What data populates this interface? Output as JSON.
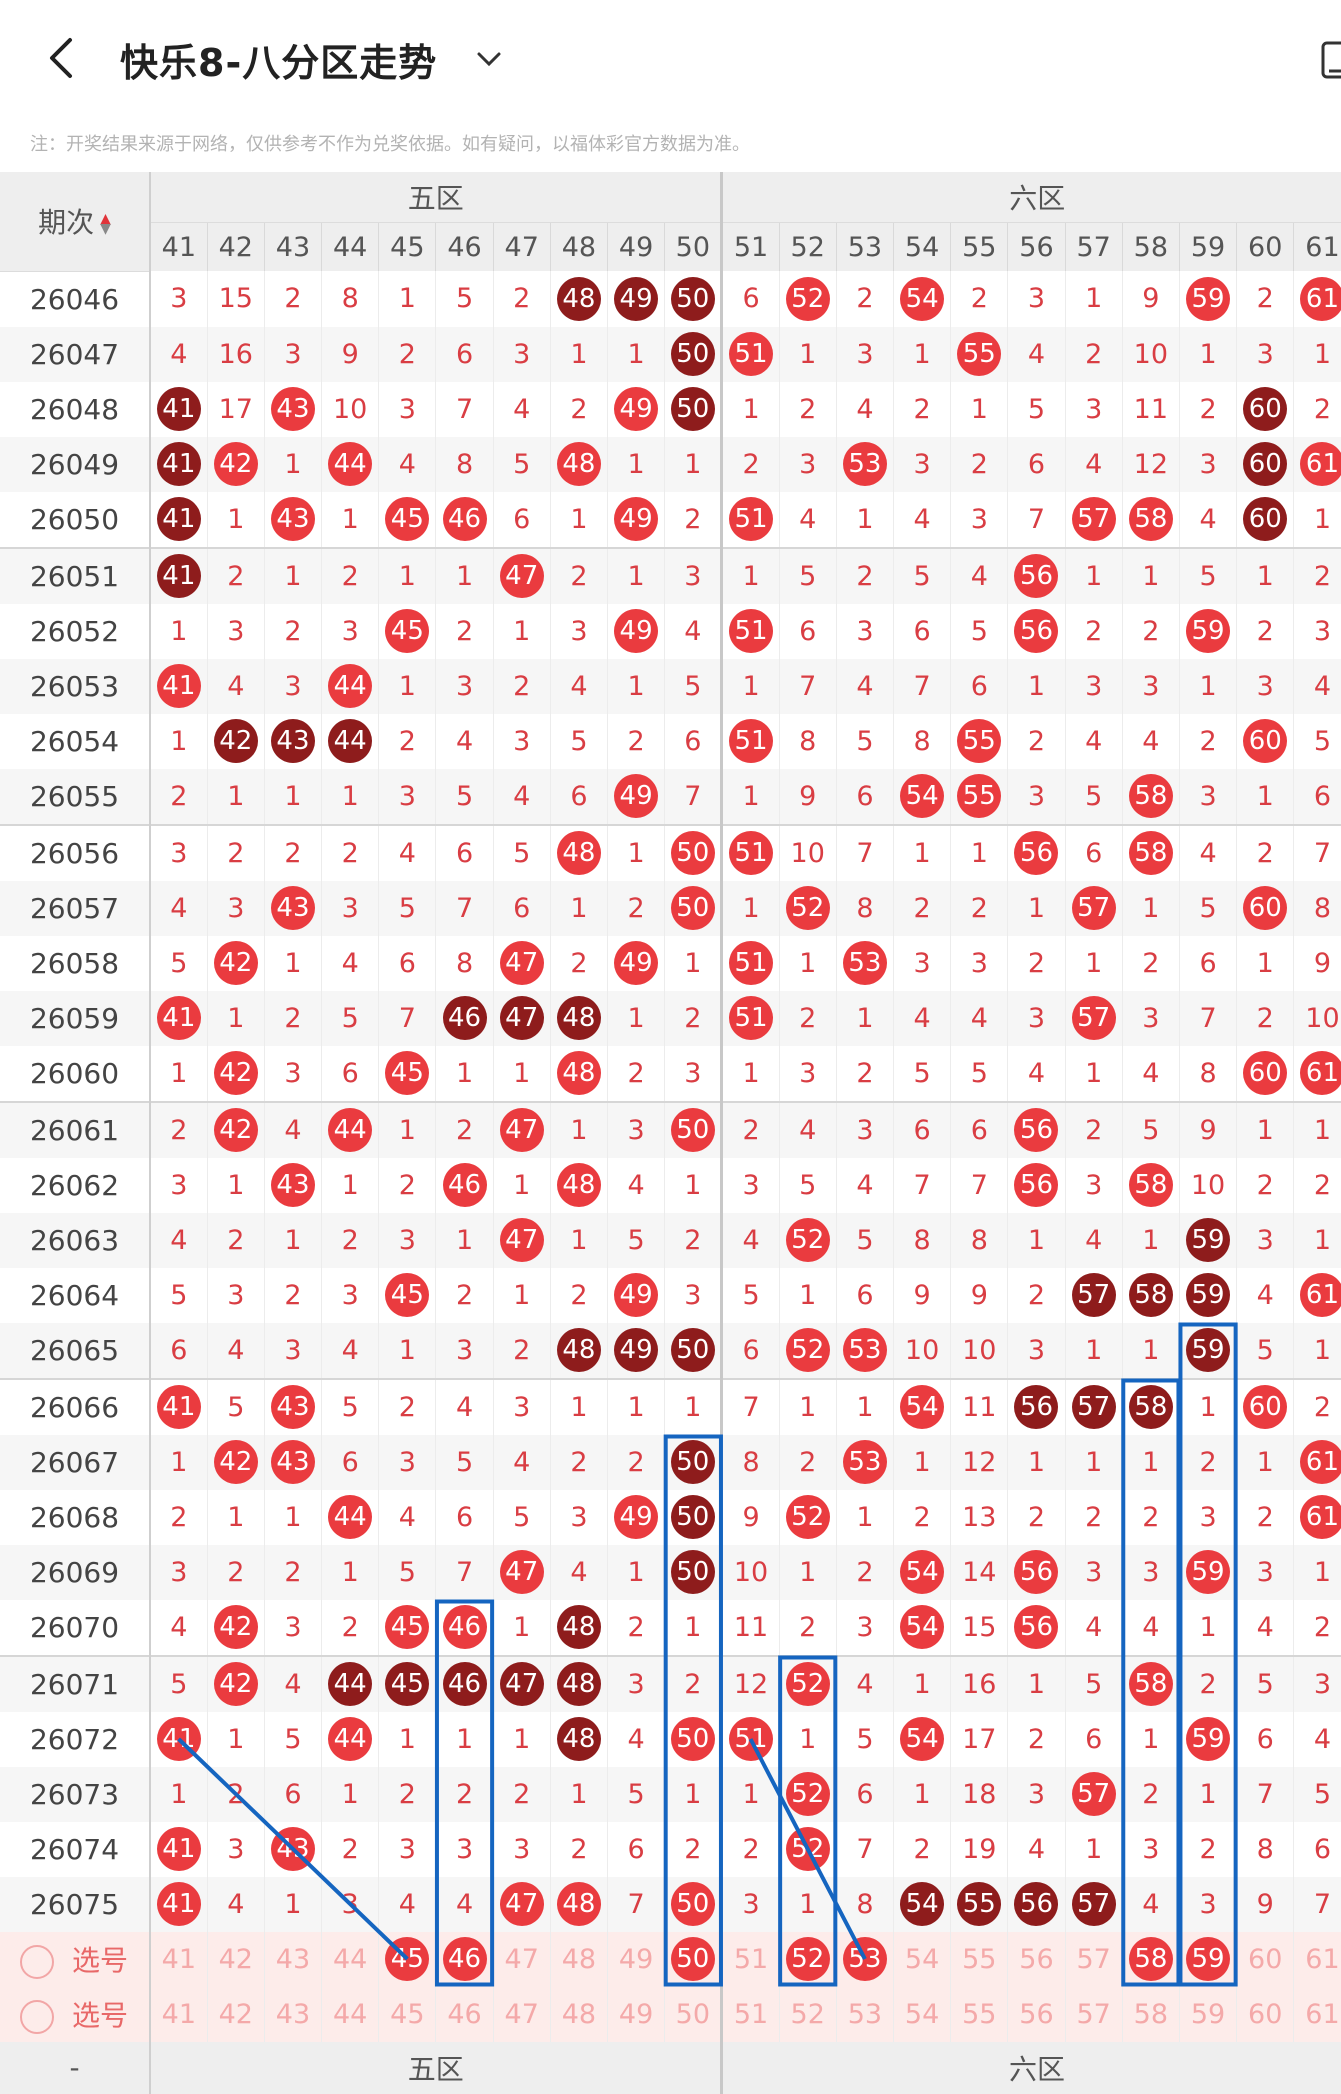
{
  "header": {
    "title": "快乐8-八分区走势",
    "back": "back-arrow-icon",
    "dropdown": "chevron-down-icon",
    "device": "tablet-icon"
  },
  "notice": "注：开奖结果来源于网络，仅供参考不作为兑奖依据。如有疑问，以福体彩官方数据为准。",
  "table": {
    "period_header": "期次",
    "zones": [
      "五区",
      "六区"
    ],
    "columns": [
      "41",
      "42",
      "43",
      "44",
      "45",
      "46",
      "47",
      "48",
      "49",
      "50",
      "51",
      "52",
      "53",
      "54",
      "55",
      "56",
      "57",
      "58",
      "59",
      "60",
      "61"
    ],
    "rows": [
      {
        "p": "26046",
        "v": [
          "3",
          "15",
          "2",
          "8",
          "1",
          "5",
          "2",
          "48d",
          "49d",
          "50d",
          "6",
          "52",
          "2",
          "54",
          "2",
          "3",
          "1",
          "9",
          "59",
          "2",
          "61"
        ]
      },
      {
        "p": "26047",
        "v": [
          "4",
          "16",
          "3",
          "9",
          "2",
          "6",
          "3",
          "1",
          "1",
          "50d",
          "51",
          "1",
          "3",
          "1",
          "55",
          "4",
          "2",
          "10",
          "1",
          "3",
          "1"
        ]
      },
      {
        "p": "26048",
        "v": [
          "41d",
          "17",
          "43",
          "10",
          "3",
          "7",
          "4",
          "2",
          "49",
          "50d",
          "1",
          "2",
          "4",
          "2",
          "1",
          "5",
          "3",
          "11",
          "2",
          "60d",
          "2"
        ]
      },
      {
        "p": "26049",
        "v": [
          "41d",
          "42",
          "1",
          "44",
          "4",
          "8",
          "5",
          "48",
          "1",
          "1",
          "2",
          "3",
          "53",
          "3",
          "2",
          "6",
          "4",
          "12",
          "3",
          "60d",
          "61"
        ]
      },
      {
        "p": "26050",
        "v": [
          "41d",
          "1",
          "43",
          "1",
          "45",
          "46",
          "6",
          "1",
          "49",
          "2",
          "51",
          "4",
          "1",
          "4",
          "3",
          "7",
          "57",
          "58",
          "4",
          "60d",
          "1"
        ]
      },
      {
        "p": "26051",
        "v": [
          "41d",
          "2",
          "1",
          "2",
          "1",
          "1",
          "47",
          "2",
          "1",
          "3",
          "1",
          "5",
          "2",
          "5",
          "4",
          "56",
          "1",
          "1",
          "5",
          "1",
          "2"
        ]
      },
      {
        "p": "26052",
        "v": [
          "1",
          "3",
          "2",
          "3",
          "45",
          "2",
          "1",
          "3",
          "49",
          "4",
          "51",
          "6",
          "3",
          "6",
          "5",
          "56",
          "2",
          "2",
          "59",
          "2",
          "3"
        ]
      },
      {
        "p": "26053",
        "v": [
          "41",
          "4",
          "3",
          "44",
          "1",
          "3",
          "2",
          "4",
          "1",
          "5",
          "1",
          "7",
          "4",
          "7",
          "6",
          "1",
          "3",
          "3",
          "1",
          "3",
          "4"
        ]
      },
      {
        "p": "26054",
        "v": [
          "1",
          "42d",
          "43d",
          "44d",
          "2",
          "4",
          "3",
          "5",
          "2",
          "6",
          "51",
          "8",
          "5",
          "8",
          "55",
          "2",
          "4",
          "4",
          "2",
          "60",
          "5"
        ]
      },
      {
        "p": "26055",
        "v": [
          "2",
          "1",
          "1",
          "1",
          "3",
          "5",
          "4",
          "6",
          "49",
          "7",
          "1",
          "9",
          "6",
          "54",
          "55",
          "3",
          "5",
          "58",
          "3",
          "1",
          "6"
        ]
      },
      {
        "p": "26056",
        "v": [
          "3",
          "2",
          "2",
          "2",
          "4",
          "6",
          "5",
          "48",
          "1",
          "50",
          "51",
          "10",
          "7",
          "1",
          "1",
          "56",
          "6",
          "58",
          "4",
          "2",
          "7"
        ]
      },
      {
        "p": "26057",
        "v": [
          "4",
          "3",
          "43",
          "3",
          "5",
          "7",
          "6",
          "1",
          "2",
          "50",
          "1",
          "52",
          "8",
          "2",
          "2",
          "1",
          "57",
          "1",
          "5",
          "60",
          "8"
        ]
      },
      {
        "p": "26058",
        "v": [
          "5",
          "42",
          "1",
          "4",
          "6",
          "8",
          "47",
          "2",
          "49",
          "1",
          "51",
          "1",
          "53",
          "3",
          "3",
          "2",
          "1",
          "2",
          "6",
          "1",
          "9"
        ]
      },
      {
        "p": "26059",
        "v": [
          "41",
          "1",
          "2",
          "5",
          "7",
          "46d",
          "47d",
          "48d",
          "1",
          "2",
          "51",
          "2",
          "1",
          "4",
          "4",
          "3",
          "57",
          "3",
          "7",
          "2",
          "10"
        ]
      },
      {
        "p": "26060",
        "v": [
          "1",
          "42",
          "3",
          "6",
          "45",
          "1",
          "1",
          "48",
          "2",
          "3",
          "1",
          "3",
          "2",
          "5",
          "5",
          "4",
          "1",
          "4",
          "8",
          "60",
          "61"
        ]
      },
      {
        "p": "26061",
        "v": [
          "2",
          "42",
          "4",
          "44",
          "1",
          "2",
          "47",
          "1",
          "3",
          "50",
          "2",
          "4",
          "3",
          "6",
          "6",
          "56",
          "2",
          "5",
          "9",
          "1",
          "1"
        ]
      },
      {
        "p": "26062",
        "v": [
          "3",
          "1",
          "43",
          "1",
          "2",
          "46",
          "1",
          "48",
          "4",
          "1",
          "3",
          "5",
          "4",
          "7",
          "7",
          "56",
          "3",
          "58",
          "10",
          "2",
          "2"
        ]
      },
      {
        "p": "26063",
        "v": [
          "4",
          "2",
          "1",
          "2",
          "3",
          "1",
          "47",
          "1",
          "5",
          "2",
          "4",
          "52",
          "5",
          "8",
          "8",
          "1",
          "4",
          "1",
          "59d",
          "3",
          "1"
        ]
      },
      {
        "p": "26064",
        "v": [
          "5",
          "3",
          "2",
          "3",
          "45",
          "2",
          "1",
          "2",
          "49",
          "3",
          "5",
          "1",
          "6",
          "9",
          "9",
          "2",
          "57d",
          "58d",
          "59d",
          "4",
          "61"
        ]
      },
      {
        "p": "26065",
        "v": [
          "6",
          "4",
          "3",
          "4",
          "1",
          "3",
          "2",
          "48d",
          "49d",
          "50d",
          "6",
          "52",
          "53",
          "10",
          "10",
          "3",
          "1",
          "1",
          "59d",
          "5",
          "1"
        ]
      },
      {
        "p": "26066",
        "v": [
          "41",
          "5",
          "43",
          "5",
          "2",
          "4",
          "3",
          "1",
          "1",
          "1",
          "7",
          "1",
          "1",
          "54",
          "11",
          "56d",
          "57d",
          "58d",
          "1",
          "60",
          "2"
        ]
      },
      {
        "p": "26067",
        "v": [
          "1",
          "42",
          "43",
          "6",
          "3",
          "5",
          "4",
          "2",
          "2",
          "50d",
          "8",
          "2",
          "53",
          "1",
          "12",
          "1",
          "1",
          "1",
          "2",
          "1",
          "61"
        ]
      },
      {
        "p": "26068",
        "v": [
          "2",
          "1",
          "1",
          "44",
          "4",
          "6",
          "5",
          "3",
          "49",
          "50d",
          "9",
          "52",
          "1",
          "2",
          "13",
          "2",
          "2",
          "2",
          "3",
          "2",
          "61"
        ]
      },
      {
        "p": "26069",
        "v": [
          "3",
          "2",
          "2",
          "1",
          "5",
          "7",
          "47",
          "4",
          "1",
          "50d",
          "10",
          "1",
          "2",
          "54",
          "14",
          "56",
          "3",
          "3",
          "59",
          "3",
          "1"
        ]
      },
      {
        "p": "26070",
        "v": [
          "4",
          "42",
          "3",
          "2",
          "45",
          "46",
          "1",
          "48d",
          "2",
          "1",
          "11",
          "2",
          "3",
          "54",
          "15",
          "56",
          "4",
          "4",
          "1",
          "4",
          "2"
        ]
      },
      {
        "p": "26071",
        "v": [
          "5",
          "42",
          "4",
          "44d",
          "45d",
          "46d",
          "47d",
          "48d",
          "3",
          "2",
          "12",
          "52",
          "4",
          "1",
          "16",
          "1",
          "5",
          "58",
          "2",
          "5",
          "3"
        ]
      },
      {
        "p": "26072",
        "v": [
          "41",
          "1",
          "5",
          "44",
          "1",
          "1",
          "1",
          "48d",
          "4",
          "50",
          "51",
          "1",
          "5",
          "54",
          "17",
          "2",
          "6",
          "1",
          "59",
          "6",
          "4"
        ]
      },
      {
        "p": "26073",
        "v": [
          "1",
          "2",
          "6",
          "1",
          "2",
          "2",
          "2",
          "1",
          "5",
          "1",
          "1",
          "52",
          "6",
          "1",
          "18",
          "3",
          "57",
          "2",
          "1",
          "7",
          "5"
        ]
      },
      {
        "p": "26074",
        "v": [
          "41",
          "3",
          "43",
          "2",
          "3",
          "3",
          "3",
          "2",
          "6",
          "2",
          "2",
          "52",
          "7",
          "2",
          "19",
          "4",
          "1",
          "3",
          "2",
          "8",
          "6"
        ]
      },
      {
        "p": "26075",
        "v": [
          "41",
          "4",
          "1",
          "3",
          "4",
          "4",
          "47",
          "48",
          "7",
          "50",
          "3",
          "1",
          "8",
          "54d",
          "55d",
          "56d",
          "57d",
          "4",
          "3",
          "9",
          "7"
        ]
      }
    ],
    "select_rows": [
      {
        "label": "选号",
        "v": [
          "41",
          "42",
          "43",
          "44",
          "45b",
          "46b",
          "47",
          "48",
          "49",
          "50b",
          "51",
          "52b",
          "53b",
          "54",
          "55",
          "56",
          "57",
          "58b",
          "59b",
          "60",
          "61"
        ]
      },
      {
        "label": "选号",
        "v": [
          "41",
          "42",
          "43",
          "44",
          "45",
          "46",
          "47",
          "48",
          "49",
          "50",
          "51",
          "52",
          "53",
          "54",
          "55",
          "56",
          "57",
          "58",
          "59",
          "60",
          "61"
        ]
      }
    ],
    "footer_zones": [
      "五区",
      "六区"
    ],
    "footer_period": "-"
  },
  "colors": {
    "ball": "#ea3b3f",
    "ball_dark": "#8e1c1c",
    "miss": "#d93d43",
    "box": "#1565c0"
  }
}
